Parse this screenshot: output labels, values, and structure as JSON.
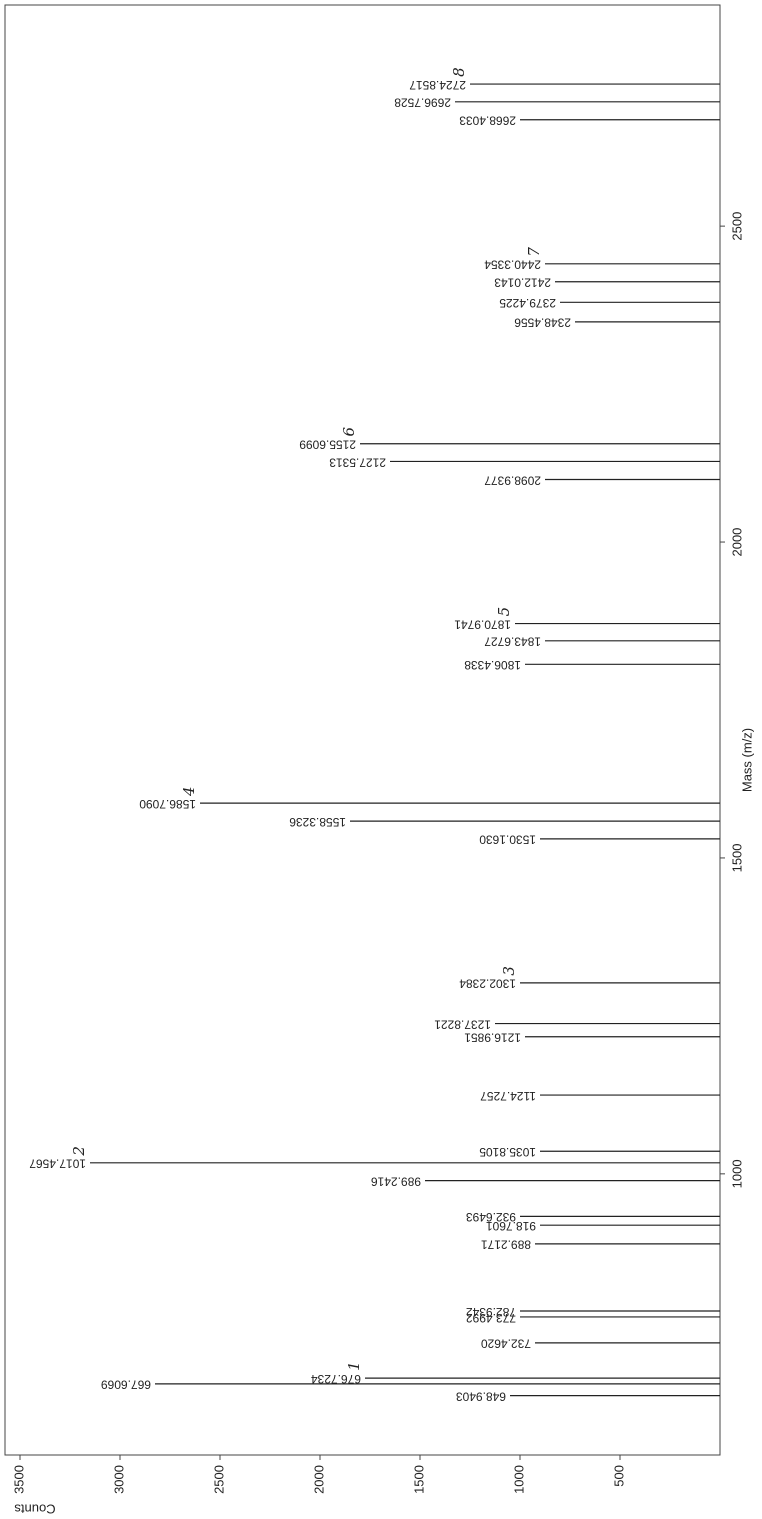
{
  "chart_data": {
    "type": "stem",
    "x_label": "Mass (m/z)",
    "y_label": "Counts",
    "x": [
      648.9403,
      667.6069,
      676.7234,
      732.462,
      773.4992,
      782.9342,
      889.2171,
      918.7601,
      932.6493,
      989.2416,
      1017.4567,
      1035.8105,
      1124.7257,
      1216.9851,
      1237.8221,
      1302.2384,
      1530.163,
      1558.3236,
      1586.709,
      1806.4338,
      1843.6727,
      1870.9741,
      2098.9377,
      2127.5313,
      2155.6099,
      2348.4556,
      2379.4225,
      2412.0143,
      2440.3354,
      2668.4033,
      2696.7528,
      2724.8517
    ],
    "peak_labels": [
      "648.9403",
      "667.6069",
      "676.7234",
      "732.4620",
      "773.4992",
      "782.9342",
      "889.2171",
      "918.7601",
      "932.6493",
      "989.2416",
      "1017.4567",
      "1035.8105",
      "1124.7257",
      "1216.9851",
      "1237.8221",
      "1302.2384",
      "1530.1630",
      "1558.3236",
      "1586.7090",
      "1806.4338",
      "1843.6727",
      "1870.9741",
      "2098.9377",
      "2127.5313",
      "2155.6099",
      "2348.4556",
      "2379.4225",
      "2412.0143",
      "2440.3354",
      "2668.4033",
      "2696.7528",
      "2724.8517"
    ],
    "values": [
      1050,
      2825,
      1775,
      925,
      1000,
      1000,
      925,
      900,
      1000,
      1475,
      3150,
      900,
      900,
      975,
      1125,
      1000,
      900,
      1850,
      2600,
      975,
      875,
      1025,
      875,
      1650,
      1800,
      725,
      800,
      825,
      875,
      1000,
      1325,
      1250
    ],
    "annotations": [
      {
        "text": "1",
        "x": 676.7234
      },
      {
        "text": "2",
        "x": 1017.4567
      },
      {
        "text": "3",
        "x": 1302.2384
      },
      {
        "text": "4",
        "x": 1586.709
      },
      {
        "text": "5",
        "x": 1870.9741
      },
      {
        "text": "6",
        "x": 2155.6099
      },
      {
        "text": "7",
        "x": 2440.3354
      },
      {
        "text": "8",
        "x": 2724.8517
      }
    ],
    "color": "#222222",
    "xlim": [
      555,
      2850
    ],
    "xticks": [
      1000,
      1500,
      2000,
      2500
    ],
    "ylim": [
      0,
      3600
    ],
    "yticks": [
      500,
      1000,
      1500,
      2000,
      2500,
      3000,
      3500
    ]
  }
}
